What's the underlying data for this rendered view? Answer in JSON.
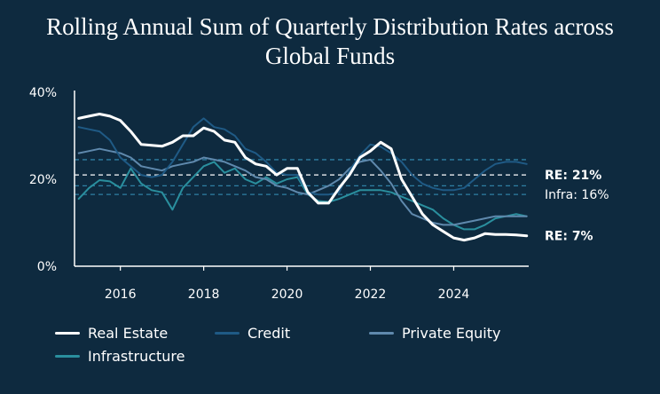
{
  "chart_data": {
    "type": "line",
    "title": "Rolling Annual Sum of Quarterly Distribution Rates across Global Funds",
    "title_lines": [
      "Rolling Annual Sum of Quarterly Distribution Rates across",
      "Global Funds"
    ],
    "x_ticks": [
      "2016",
      "2018",
      "2020",
      "2022",
      "2024"
    ],
    "y_ticks": [
      "0%",
      "20%",
      "40%"
    ],
    "ylim": [
      0,
      40
    ],
    "xlim": [
      2014.9,
      2025.8
    ],
    "grid": false,
    "legend_position": "bottom",
    "x": [
      2015.0,
      2015.25,
      2015.5,
      2015.75,
      2016.0,
      2016.25,
      2016.5,
      2016.75,
      2017.0,
      2017.25,
      2017.5,
      2017.75,
      2018.0,
      2018.25,
      2018.5,
      2018.75,
      2019.0,
      2019.25,
      2019.5,
      2019.75,
      2020.0,
      2020.25,
      2020.5,
      2020.75,
      2021.0,
      2021.25,
      2021.5,
      2021.75,
      2022.0,
      2022.25,
      2022.5,
      2022.75,
      2023.0,
      2023.25,
      2023.5,
      2023.75,
      2024.0,
      2024.25,
      2024.5,
      2024.75,
      2025.0,
      2025.25,
      2025.5,
      2025.75
    ],
    "series": [
      {
        "name": "Real Estate",
        "color": "#ffffff",
        "width": 3,
        "values": [
          34,
          34.5,
          35,
          34.5,
          33.5,
          31,
          28,
          27.8,
          27.6,
          28.5,
          30,
          30,
          31.8,
          31,
          29,
          28.5,
          25,
          23.5,
          23,
          21,
          22.5,
          22.5,
          17,
          14.5,
          14.5,
          18,
          21,
          25,
          26.5,
          28.5,
          27,
          20,
          16,
          12,
          9.5,
          8,
          6.5,
          6,
          6.5,
          7.5,
          7.3,
          7.3,
          7.2,
          7
        ]
      },
      {
        "name": "Credit",
        "color": "#1f5a85",
        "width": 2,
        "values": [
          32,
          31.5,
          31,
          29,
          25,
          23,
          21,
          20.5,
          21,
          24,
          28,
          32,
          34,
          32,
          31.5,
          30,
          27,
          26,
          24,
          21.5,
          21,
          21,
          17,
          16.5,
          16.5,
          17,
          22,
          25.5,
          28,
          27.5,
          26,
          24,
          21,
          19,
          18,
          17.5,
          17.5,
          18,
          20,
          22,
          23.5,
          24,
          24,
          23.5
        ]
      },
      {
        "name": "Private Equity",
        "color": "#5f89ad",
        "width": 2,
        "values": [
          26,
          26.5,
          27,
          26.5,
          26,
          25,
          23,
          22.5,
          22,
          23,
          23.5,
          24,
          25,
          24.5,
          24,
          23,
          22,
          20.5,
          20,
          18.5,
          18,
          17,
          16.5,
          17.5,
          18.5,
          20,
          22.5,
          24,
          24.5,
          22,
          19,
          15,
          12,
          11,
          10,
          9.5,
          9.5,
          10,
          10.5,
          11,
          11.5,
          11.5,
          11.5,
          11.5
        ]
      },
      {
        "name": "Infrastructure",
        "color": "#2a8f9e",
        "width": 2,
        "values": [
          15.5,
          18,
          19.8,
          19.5,
          18,
          22.5,
          19,
          17.5,
          17,
          13,
          18,
          20.5,
          23,
          24,
          21.5,
          22.5,
          20,
          19,
          20.5,
          19,
          20,
          20.5,
          16.5,
          15,
          14.8,
          15.5,
          16.5,
          17.5,
          17.5,
          17.5,
          17,
          16,
          15,
          14,
          13,
          11,
          9.5,
          8.5,
          8.5,
          9.5,
          11,
          11.5,
          12,
          11.5
        ]
      }
    ],
    "reference_lines": [
      {
        "value": 24.5,
        "color": "#2e7fa3",
        "style": "dashed"
      },
      {
        "value": 21,
        "color": "#ffffff",
        "style": "dashed"
      },
      {
        "value": 18.5,
        "color": "#2e7fa3",
        "style": "dashed"
      },
      {
        "value": 16.5,
        "color": "#2e7fa3",
        "style": "dashed"
      }
    ],
    "annotations": [
      {
        "text": "RE: 21%",
        "y": 21,
        "bold": true
      },
      {
        "text": "Infra: 16%",
        "y": 16.5,
        "bold": false
      },
      {
        "text": "RE: 7%",
        "y": 7,
        "bold": true
      }
    ]
  },
  "colors": {
    "background": "#0e2a3f",
    "axis": "#ffffff",
    "text": "#ffffff"
  }
}
